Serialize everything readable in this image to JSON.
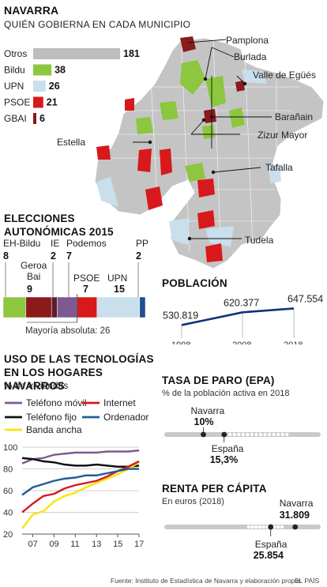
{
  "header": {
    "title": "NAVARRA",
    "subtitle": "QUIÉN GOBIERNA EN CADA MUNICIPIO"
  },
  "colors": {
    "otros": "#bdbdbd",
    "bildu": "#8dc63f",
    "upn": "#c9dfeb",
    "psoe": "#d7191c",
    "gbai": "#8b1a1a",
    "pp": "#1d4f91",
    "podemos": "#7d5a92",
    "ie": "#5b1f2a",
    "geroa": "#8b1a1a",
    "navy": "#12317a"
  },
  "map_labels": [
    "Pamplona",
    "Burlada",
    "Valle de Egüés",
    "Barañain",
    "Zizur Mayor",
    "Estella",
    "Tafalla",
    "Tudela"
  ],
  "chart_data": [
    {
      "type": "bar",
      "title": "",
      "categories": [
        "Otros",
        "Bildu",
        "UPN",
        "PSOE",
        "GBAI"
      ],
      "values": [
        181,
        38,
        26,
        21,
        6
      ],
      "xlabel": "",
      "ylabel": ""
    },
    {
      "type": "bar",
      "title": "ELECCIONES AUTONÓMICAS 2015",
      "categories": [
        "EH-Bildu",
        "Geroa Bai",
        "IE",
        "Podemos",
        "PSOE",
        "UPN",
        "PP"
      ],
      "values": [
        8,
        9,
        2,
        7,
        7,
        15,
        2
      ],
      "annotation": "Mayoría absoluta: 26"
    },
    {
      "type": "line",
      "title": "POBLACIÓN",
      "x": [
        "1998",
        "2008",
        "2018"
      ],
      "values": [
        530819,
        620377,
        647554
      ],
      "value_labels": [
        "530.819",
        "620.377",
        "647.554"
      ]
    },
    {
      "type": "line",
      "title": "USO DE LAS TECNOLOGÍAS EN LOS HOGARES NAVARROS",
      "subtitle": "% de viviendas",
      "x": [
        2006,
        2007,
        2008,
        2009,
        2010,
        2011,
        2012,
        2013,
        2014,
        2015,
        2016,
        2017
      ],
      "x_ticks": [
        "07",
        "09",
        "11",
        "13",
        "15",
        "17"
      ],
      "ylim": [
        20,
        100
      ],
      "y_ticks": [
        "20",
        "40",
        "60",
        "80",
        "100"
      ],
      "series": [
        {
          "name": "Teléfono móvil",
          "values": [
            85,
            89,
            90,
            93,
            94,
            95,
            95,
            95,
            96,
            96,
            96,
            97
          ]
        },
        {
          "name": "Teléfono fijo",
          "values": [
            90,
            89,
            87,
            86,
            84,
            83,
            83,
            84,
            83,
            82,
            82,
            83
          ]
        },
        {
          "name": "Banda ancha",
          "values": [
            25,
            38,
            41,
            50,
            55,
            58,
            63,
            67,
            71,
            75,
            80,
            86
          ]
        },
        {
          "name": "Internet",
          "values": [
            40,
            48,
            55,
            57,
            62,
            65,
            67,
            69,
            73,
            78,
            82,
            87
          ]
        },
        {
          "name": "Ordenador",
          "values": [
            56,
            63,
            66,
            69,
            71,
            72,
            74,
            74,
            76,
            78,
            80,
            80
          ]
        }
      ]
    },
    {
      "type": "scatter",
      "title": "TASA DE PARO (EPA)",
      "subtitle": "% de la población activa en 2018",
      "points": [
        {
          "name": "Navarra",
          "value": 10,
          "label": "10%"
        },
        {
          "name": "España",
          "value": 15.3,
          "label": "15,3%"
        }
      ]
    },
    {
      "type": "scatter",
      "title": "RENTA PER CÁPITA",
      "subtitle": "En euros (2018)",
      "points": [
        {
          "name": "Navarra",
          "value": 31809,
          "label": "31.809"
        },
        {
          "name": "España",
          "value": 25854,
          "label": "25.854"
        }
      ]
    }
  ],
  "footer": {
    "source": "Fuente: Instituto de Estadística de Navarra y elaboración propia.",
    "brand": "EL PAÍS"
  }
}
